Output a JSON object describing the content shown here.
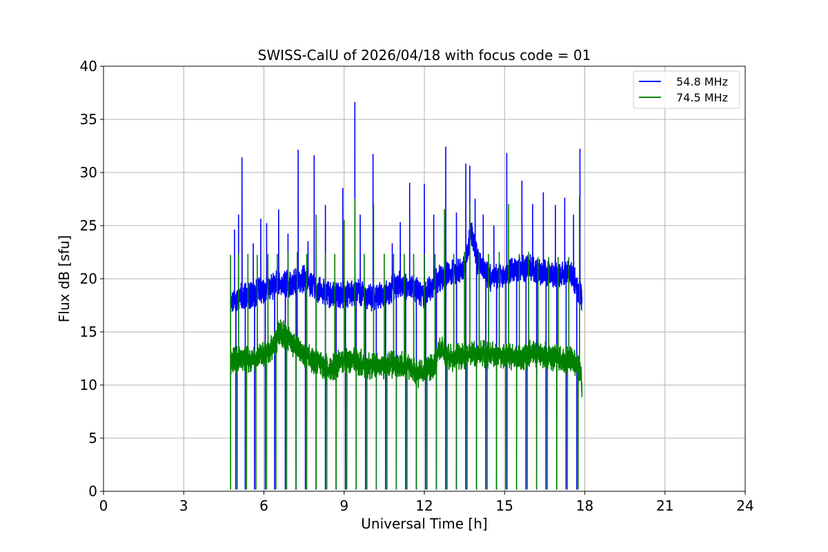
{
  "chart_data": {
    "type": "line",
    "title": "SWISS-CalU of 2026/04/18 with focus code = 01",
    "xlabel": "Universal Time [h]",
    "ylabel": "Flux dB [sfu]",
    "xlim": [
      0,
      24
    ],
    "ylim": [
      0,
      40
    ],
    "xticks": [
      0,
      3,
      6,
      9,
      12,
      15,
      18,
      21,
      24
    ],
    "yticks": [
      0,
      5,
      10,
      15,
      20,
      25,
      30,
      35,
      40
    ],
    "grid": true,
    "legend_position": "top-right",
    "series": [
      {
        "name": "54.8 MHz",
        "color": "#0000ff",
        "baseline": [
          [
            4.75,
            18.0
          ],
          [
            5.0,
            18.2
          ],
          [
            5.5,
            18.5
          ],
          [
            6.0,
            19.0
          ],
          [
            6.5,
            19.5
          ],
          [
            7.0,
            19.5
          ],
          [
            7.5,
            20.0
          ],
          [
            8.0,
            19.0
          ],
          [
            8.5,
            18.5
          ],
          [
            9.0,
            18.5
          ],
          [
            9.5,
            18.8
          ],
          [
            10.0,
            18.2
          ],
          [
            10.5,
            18.5
          ],
          [
            11.0,
            19.5
          ],
          [
            11.5,
            19.2
          ],
          [
            12.0,
            18.5
          ],
          [
            12.5,
            20.0
          ],
          [
            13.0,
            20.5
          ],
          [
            13.5,
            20.8
          ],
          [
            13.75,
            24.5
          ],
          [
            14.0,
            21.5
          ],
          [
            14.5,
            20.0
          ],
          [
            15.0,
            20.5
          ],
          [
            15.5,
            21.0
          ],
          [
            16.0,
            21.0
          ],
          [
            16.5,
            20.5
          ],
          [
            17.0,
            20.5
          ],
          [
            17.5,
            20.5
          ],
          [
            17.9,
            18.0
          ]
        ],
        "spikes": [
          [
            4.9,
            24.6
          ],
          [
            5.05,
            26.0
          ],
          [
            5.18,
            31.4
          ],
          [
            5.6,
            23.3
          ],
          [
            5.88,
            25.6
          ],
          [
            6.1,
            25.2
          ],
          [
            6.55,
            26.5
          ],
          [
            6.9,
            24.2
          ],
          [
            7.28,
            32.1
          ],
          [
            7.65,
            23.5
          ],
          [
            7.88,
            31.6
          ],
          [
            8.3,
            26.9
          ],
          [
            8.95,
            28.5
          ],
          [
            9.4,
            36.6
          ],
          [
            9.6,
            26.0
          ],
          [
            10.08,
            31.7
          ],
          [
            10.8,
            23.3
          ],
          [
            11.1,
            25.3
          ],
          [
            11.45,
            29.0
          ],
          [
            12.0,
            28.9
          ],
          [
            12.35,
            26.0
          ],
          [
            12.8,
            32.4
          ],
          [
            13.2,
            26.2
          ],
          [
            13.55,
            30.8
          ],
          [
            13.7,
            30.6
          ],
          [
            13.9,
            27.5
          ],
          [
            14.2,
            26.0
          ],
          [
            14.6,
            25.0
          ],
          [
            15.08,
            31.8
          ],
          [
            15.65,
            29.2
          ],
          [
            16.05,
            27.0
          ],
          [
            16.45,
            28.1
          ],
          [
            16.9,
            26.9
          ],
          [
            17.25,
            27.6
          ],
          [
            17.58,
            26.0
          ],
          [
            17.82,
            32.2
          ]
        ],
        "dips": [
          4.95,
          5.3,
          5.65,
          6.05,
          6.4,
          6.8,
          7.2,
          7.55,
          7.95,
          8.3,
          8.7,
          9.05,
          9.45,
          9.8,
          10.2,
          10.55,
          10.95,
          11.3,
          11.7,
          12.05,
          12.45,
          12.8,
          13.2,
          13.55,
          13.95,
          14.3,
          14.7,
          15.05,
          15.45,
          15.8,
          16.2,
          16.55,
          16.95,
          17.3,
          17.7
        ]
      },
      {
        "name": "74.5 MHz",
        "color": "#008000",
        "baseline": [
          [
            4.75,
            12.2
          ],
          [
            5.0,
            12.4
          ],
          [
            5.5,
            12.5
          ],
          [
            6.0,
            12.8
          ],
          [
            6.3,
            13.5
          ],
          [
            6.6,
            15.0
          ],
          [
            6.9,
            14.5
          ],
          [
            7.2,
            13.5
          ],
          [
            7.5,
            13.0
          ],
          [
            8.0,
            12.0
          ],
          [
            8.5,
            11.5
          ],
          [
            9.0,
            12.5
          ],
          [
            9.5,
            12.2
          ],
          [
            10.0,
            11.8
          ],
          [
            10.5,
            11.8
          ],
          [
            11.0,
            12.0
          ],
          [
            11.5,
            11.8
          ],
          [
            11.7,
            11.0
          ],
          [
            12.0,
            11.2
          ],
          [
            12.4,
            12.0
          ],
          [
            12.6,
            13.5
          ],
          [
            12.8,
            12.8
          ],
          [
            13.0,
            12.5
          ],
          [
            13.5,
            12.8
          ],
          [
            14.0,
            13.0
          ],
          [
            14.5,
            12.8
          ],
          [
            15.0,
            12.8
          ],
          [
            15.5,
            12.5
          ],
          [
            16.0,
            13.0
          ],
          [
            16.5,
            12.8
          ],
          [
            17.0,
            12.5
          ],
          [
            17.5,
            12.3
          ],
          [
            17.8,
            11.5
          ],
          [
            17.9,
            10.0
          ]
        ],
        "spikes": [
          [
            4.75,
            22.2
          ],
          [
            5.05,
            22.3
          ],
          [
            5.4,
            22.3
          ],
          [
            5.75,
            22.2
          ],
          [
            6.15,
            22.3
          ],
          [
            6.5,
            22.3
          ],
          [
            6.9,
            22.5
          ],
          [
            7.25,
            22.5
          ],
          [
            7.6,
            22.3
          ],
          [
            7.95,
            26.0
          ],
          [
            8.3,
            22.3
          ],
          [
            8.65,
            22.3
          ],
          [
            9.0,
            25.5
          ],
          [
            9.4,
            27.5
          ],
          [
            9.75,
            22.3
          ],
          [
            10.1,
            27.0
          ],
          [
            10.5,
            22.3
          ],
          [
            10.85,
            22.3
          ],
          [
            11.25,
            22.3
          ],
          [
            11.6,
            22.3
          ],
          [
            12.0,
            22.3
          ],
          [
            12.4,
            22.3
          ],
          [
            12.75,
            26.5
          ],
          [
            13.1,
            22.3
          ],
          [
            13.5,
            22.5
          ],
          [
            13.7,
            27.0
          ],
          [
            14.05,
            22.5
          ],
          [
            14.4,
            22.3
          ],
          [
            14.8,
            22.5
          ],
          [
            15.15,
            27.0
          ],
          [
            15.55,
            22.3
          ],
          [
            15.9,
            22.5
          ],
          [
            16.25,
            22.0
          ],
          [
            16.65,
            22.0
          ],
          [
            17.0,
            22.0
          ],
          [
            17.4,
            22.0
          ],
          [
            17.8,
            27.7
          ]
        ],
        "dips": [
          4.75,
          5.0,
          5.35,
          5.7,
          6.1,
          6.45,
          6.85,
          7.2,
          7.6,
          7.95,
          8.35,
          8.7,
          9.1,
          9.45,
          9.85,
          10.2,
          10.6,
          10.95,
          11.35,
          11.7,
          12.1,
          12.45,
          12.85,
          13.2,
          13.6,
          13.95,
          14.35,
          14.7,
          15.1,
          15.45,
          15.85,
          16.2,
          16.6,
          16.95,
          17.35,
          17.75
        ]
      }
    ]
  }
}
